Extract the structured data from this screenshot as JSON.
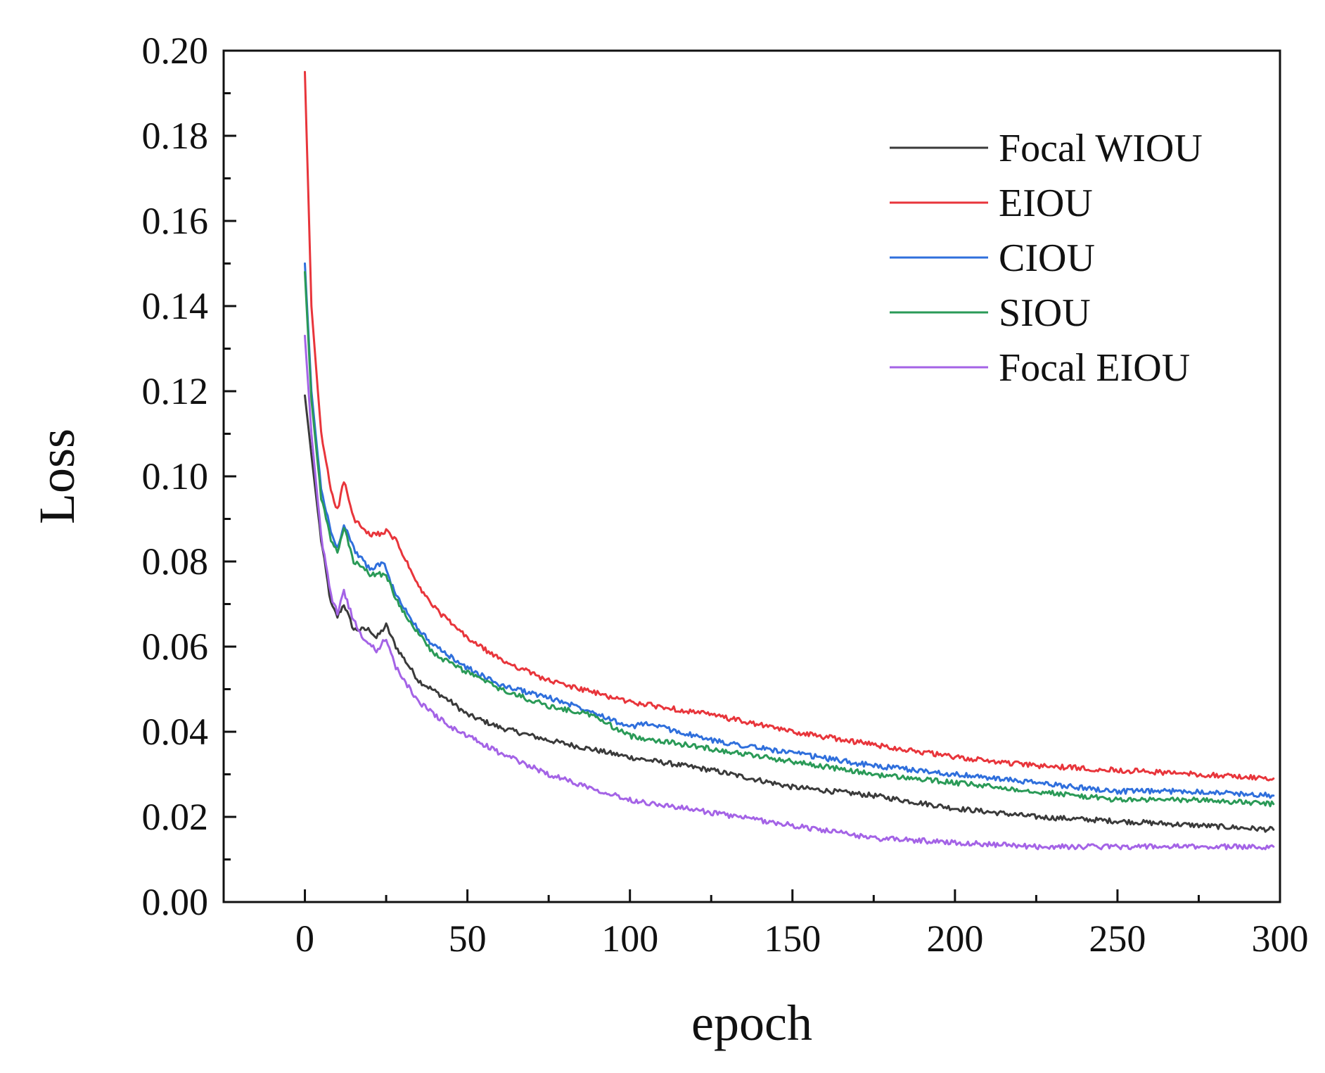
{
  "chart_data": {
    "type": "line",
    "title": "",
    "xlabel": "epoch",
    "ylabel": "Loss",
    "xlim": [
      -25,
      300
    ],
    "ylim": [
      0.0,
      0.2
    ],
    "xticks": [
      0,
      50,
      100,
      150,
      200,
      250,
      300
    ],
    "xtick_labels": [
      "0",
      "50",
      "100",
      "150",
      "200",
      "250",
      "300"
    ],
    "yticks": [
      0.0,
      0.02,
      0.04,
      0.06,
      0.08,
      0.1,
      0.12,
      0.14,
      0.16,
      0.18,
      0.2
    ],
    "ytick_labels": [
      "0.00",
      "0.02",
      "0.04",
      "0.06",
      "0.08",
      "0.10",
      "0.12",
      "0.14",
      "0.16",
      "0.18",
      "0.20"
    ],
    "grid": false,
    "legend_position": "top-right",
    "series": [
      {
        "name": "Focal WIOU",
        "color": "#3a3a3a",
        "points": [
          [
            0,
            0.119
          ],
          [
            2,
            0.105
          ],
          [
            5,
            0.085
          ],
          [
            8,
            0.07
          ],
          [
            10,
            0.067
          ],
          [
            12,
            0.07
          ],
          [
            15,
            0.064
          ],
          [
            20,
            0.064
          ],
          [
            22,
            0.062
          ],
          [
            25,
            0.065
          ],
          [
            28,
            0.06
          ],
          [
            35,
            0.052
          ],
          [
            45,
            0.047
          ],
          [
            50,
            0.044
          ],
          [
            60,
            0.041
          ],
          [
            75,
            0.038
          ],
          [
            100,
            0.034
          ],
          [
            125,
            0.031
          ],
          [
            150,
            0.027
          ],
          [
            175,
            0.025
          ],
          [
            200,
            0.022
          ],
          [
            225,
            0.02
          ],
          [
            250,
            0.019
          ],
          [
            275,
            0.018
          ],
          [
            298,
            0.017
          ]
        ]
      },
      {
        "name": "EIOU",
        "color": "#e8353b",
        "points": [
          [
            0,
            0.195
          ],
          [
            2,
            0.14
          ],
          [
            5,
            0.11
          ],
          [
            8,
            0.097
          ],
          [
            10,
            0.092
          ],
          [
            12,
            0.099
          ],
          [
            15,
            0.09
          ],
          [
            20,
            0.086
          ],
          [
            25,
            0.087
          ],
          [
            28,
            0.085
          ],
          [
            35,
            0.074
          ],
          [
            40,
            0.069
          ],
          [
            50,
            0.062
          ],
          [
            60,
            0.057
          ],
          [
            75,
            0.052
          ],
          [
            100,
            0.047
          ],
          [
            125,
            0.044
          ],
          [
            150,
            0.04
          ],
          [
            175,
            0.037
          ],
          [
            200,
            0.034
          ],
          [
            225,
            0.032
          ],
          [
            250,
            0.031
          ],
          [
            275,
            0.03
          ],
          [
            298,
            0.029
          ]
        ]
      },
      {
        "name": "CIOU",
        "color": "#2f6fdc",
        "points": [
          [
            0,
            0.15
          ],
          [
            2,
            0.12
          ],
          [
            5,
            0.097
          ],
          [
            8,
            0.087
          ],
          [
            10,
            0.083
          ],
          [
            12,
            0.089
          ],
          [
            15,
            0.083
          ],
          [
            20,
            0.078
          ],
          [
            24,
            0.08
          ],
          [
            28,
            0.072
          ],
          [
            35,
            0.064
          ],
          [
            40,
            0.06
          ],
          [
            50,
            0.055
          ],
          [
            60,
            0.051
          ],
          [
            75,
            0.048
          ],
          [
            88,
            0.045
          ],
          [
            100,
            0.041
          ],
          [
            105,
            0.042
          ],
          [
            125,
            0.038
          ],
          [
            150,
            0.035
          ],
          [
            175,
            0.032
          ],
          [
            200,
            0.03
          ],
          [
            225,
            0.028
          ],
          [
            250,
            0.026
          ],
          [
            275,
            0.026
          ],
          [
            298,
            0.025
          ]
        ]
      },
      {
        "name": "SIOU",
        "color": "#2a9a57",
        "points": [
          [
            0,
            0.148
          ],
          [
            2,
            0.118
          ],
          [
            5,
            0.095
          ],
          [
            8,
            0.085
          ],
          [
            10,
            0.082
          ],
          [
            12,
            0.088
          ],
          [
            15,
            0.08
          ],
          [
            20,
            0.077
          ],
          [
            25,
            0.077
          ],
          [
            28,
            0.071
          ],
          [
            35,
            0.063
          ],
          [
            40,
            0.058
          ],
          [
            50,
            0.054
          ],
          [
            60,
            0.05
          ],
          [
            75,
            0.046
          ],
          [
            88,
            0.044
          ],
          [
            100,
            0.039
          ],
          [
            125,
            0.036
          ],
          [
            150,
            0.033
          ],
          [
            175,
            0.03
          ],
          [
            200,
            0.028
          ],
          [
            225,
            0.026
          ],
          [
            250,
            0.024
          ],
          [
            275,
            0.024
          ],
          [
            298,
            0.023
          ]
        ]
      },
      {
        "name": "Focal EIOU",
        "color": "#a463e6",
        "points": [
          [
            0,
            0.133
          ],
          [
            2,
            0.11
          ],
          [
            5,
            0.086
          ],
          [
            8,
            0.072
          ],
          [
            10,
            0.068
          ],
          [
            12,
            0.073
          ],
          [
            15,
            0.066
          ],
          [
            18,
            0.062
          ],
          [
            22,
            0.059
          ],
          [
            25,
            0.062
          ],
          [
            28,
            0.055
          ],
          [
            35,
            0.047
          ],
          [
            45,
            0.041
          ],
          [
            50,
            0.039
          ],
          [
            60,
            0.035
          ],
          [
            75,
            0.03
          ],
          [
            100,
            0.024
          ],
          [
            125,
            0.021
          ],
          [
            150,
            0.018
          ],
          [
            175,
            0.015
          ],
          [
            200,
            0.014
          ],
          [
            225,
            0.013
          ],
          [
            250,
            0.013
          ],
          [
            275,
            0.013
          ],
          [
            298,
            0.013
          ]
        ]
      }
    ]
  }
}
